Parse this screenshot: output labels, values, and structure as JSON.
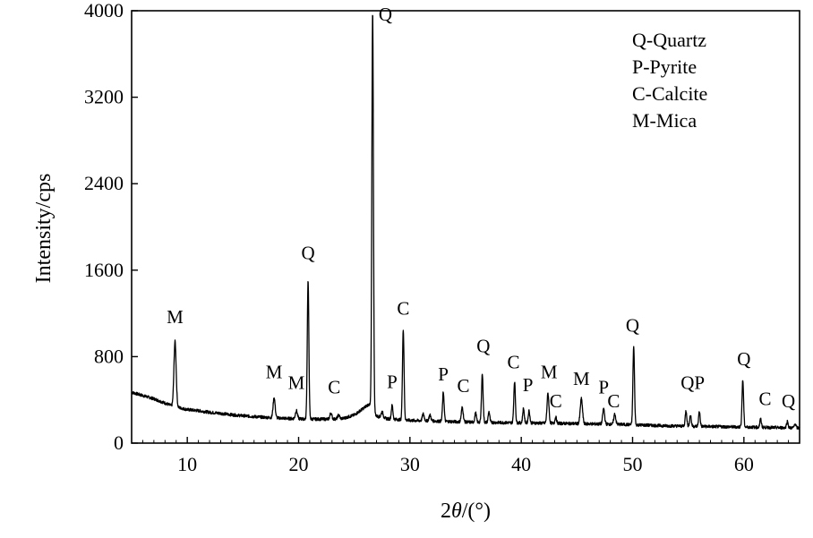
{
  "chart_data": {
    "type": "line",
    "title": "",
    "xlabel": "2θ/(°)",
    "ylabel": "Intensity/cps",
    "xlim": [
      5,
      65
    ],
    "ylim": [
      0,
      4000
    ],
    "xticks": [
      10,
      20,
      30,
      40,
      50,
      60
    ],
    "yticks": [
      0,
      800,
      1600,
      2400,
      3200,
      4000
    ],
    "grid": false,
    "legend_position": "top-right",
    "line_color": "#000000",
    "legend": [
      "Q-Quartz",
      "P-Pyrite",
      "C-Calcite",
      "M-Mica"
    ],
    "baseline": [
      [
        5,
        470
      ],
      [
        6,
        440
      ],
      [
        7,
        410
      ],
      [
        8,
        370
      ],
      [
        8.6,
        345
      ],
      [
        10,
        310
      ],
      [
        11,
        300
      ],
      [
        12,
        285
      ],
      [
        13,
        275
      ],
      [
        14,
        262
      ],
      [
        15,
        253
      ],
      [
        16,
        245
      ],
      [
        17,
        238
      ],
      [
        19,
        228
      ],
      [
        21,
        222
      ],
      [
        23,
        222
      ],
      [
        24,
        228
      ],
      [
        25,
        260
      ],
      [
        25.8,
        320
      ],
      [
        26.3,
        360
      ],
      [
        27,
        250
      ],
      [
        28,
        225
      ],
      [
        30,
        210
      ],
      [
        32,
        205
      ],
      [
        35,
        195
      ],
      [
        38,
        190
      ],
      [
        42,
        185
      ],
      [
        45,
        180
      ],
      [
        48,
        175
      ],
      [
        50,
        170
      ],
      [
        53,
        160
      ],
      [
        56,
        155
      ],
      [
        59,
        150
      ],
      [
        62,
        145
      ],
      [
        65,
        140
      ]
    ],
    "peaks": [
      {
        "x": 8.9,
        "y": 940,
        "w": 0.14
      },
      {
        "x": 17.8,
        "y": 420,
        "w": 0.13
      },
      {
        "x": 19.8,
        "y": 300,
        "w": 0.13
      },
      {
        "x": 20.85,
        "y": 1500,
        "w": 0.1
      },
      {
        "x": 22.9,
        "y": 280,
        "w": 0.12
      },
      {
        "x": 23.6,
        "y": 260,
        "w": 0.12
      },
      {
        "x": 26.65,
        "y": 4000,
        "w": 0.1
      },
      {
        "x": 27.5,
        "y": 290,
        "w": 0.12
      },
      {
        "x": 28.4,
        "y": 350,
        "w": 0.1
      },
      {
        "x": 29.4,
        "y": 1050,
        "w": 0.1
      },
      {
        "x": 31.2,
        "y": 270,
        "w": 0.12
      },
      {
        "x": 31.8,
        "y": 260,
        "w": 0.12
      },
      {
        "x": 33.0,
        "y": 470,
        "w": 0.1
      },
      {
        "x": 34.7,
        "y": 330,
        "w": 0.12
      },
      {
        "x": 35.9,
        "y": 280,
        "w": 0.1
      },
      {
        "x": 36.5,
        "y": 640,
        "w": 0.1
      },
      {
        "x": 37.1,
        "y": 290,
        "w": 0.1
      },
      {
        "x": 39.4,
        "y": 570,
        "w": 0.1
      },
      {
        "x": 40.2,
        "y": 320,
        "w": 0.1
      },
      {
        "x": 40.7,
        "y": 300,
        "w": 0.1
      },
      {
        "x": 42.4,
        "y": 460,
        "w": 0.12
      },
      {
        "x": 43.1,
        "y": 240,
        "w": 0.1
      },
      {
        "x": 45.4,
        "y": 410,
        "w": 0.14
      },
      {
        "x": 47.4,
        "y": 320,
        "w": 0.12
      },
      {
        "x": 48.4,
        "y": 270,
        "w": 0.12
      },
      {
        "x": 50.1,
        "y": 890,
        "w": 0.1
      },
      {
        "x": 54.8,
        "y": 300,
        "w": 0.1
      },
      {
        "x": 55.2,
        "y": 260,
        "w": 0.1
      },
      {
        "x": 56.0,
        "y": 290,
        "w": 0.1
      },
      {
        "x": 59.9,
        "y": 580,
        "w": 0.1
      },
      {
        "x": 61.5,
        "y": 220,
        "w": 0.1
      },
      {
        "x": 63.9,
        "y": 200,
        "w": 0.1
      },
      {
        "x": 64.6,
        "y": 180,
        "w": 0.1
      }
    ],
    "annotations": [
      {
        "label": "M",
        "x": 8.9,
        "y": 1110
      },
      {
        "label": "M",
        "x": 17.8,
        "y": 600
      },
      {
        "label": "M",
        "x": 19.8,
        "y": 500
      },
      {
        "label": "Q",
        "x": 20.85,
        "y": 1700
      },
      {
        "label": "C",
        "x": 23.2,
        "y": 460
      },
      {
        "label": "Q",
        "x": 27.8,
        "y": 3910
      },
      {
        "label": "P",
        "x": 28.4,
        "y": 510
      },
      {
        "label": "C",
        "x": 29.4,
        "y": 1190
      },
      {
        "label": "P",
        "x": 33.0,
        "y": 580
      },
      {
        "label": "C",
        "x": 34.8,
        "y": 470
      },
      {
        "label": "Q",
        "x": 36.6,
        "y": 840
      },
      {
        "label": "C",
        "x": 39.3,
        "y": 690
      },
      {
        "label": "P",
        "x": 40.6,
        "y": 480
      },
      {
        "label": "M",
        "x": 42.5,
        "y": 600
      },
      {
        "label": "C",
        "x": 43.1,
        "y": 330
      },
      {
        "label": "M",
        "x": 45.4,
        "y": 540
      },
      {
        "label": "P",
        "x": 47.4,
        "y": 460
      },
      {
        "label": "C",
        "x": 48.3,
        "y": 330
      },
      {
        "label": "Q",
        "x": 50.0,
        "y": 1030
      },
      {
        "label": "QP",
        "x": 55.4,
        "y": 500
      },
      {
        "label": "Q",
        "x": 60.0,
        "y": 720
      },
      {
        "label": "C",
        "x": 61.9,
        "y": 350
      },
      {
        "label": "Q",
        "x": 64.0,
        "y": 330
      }
    ]
  }
}
